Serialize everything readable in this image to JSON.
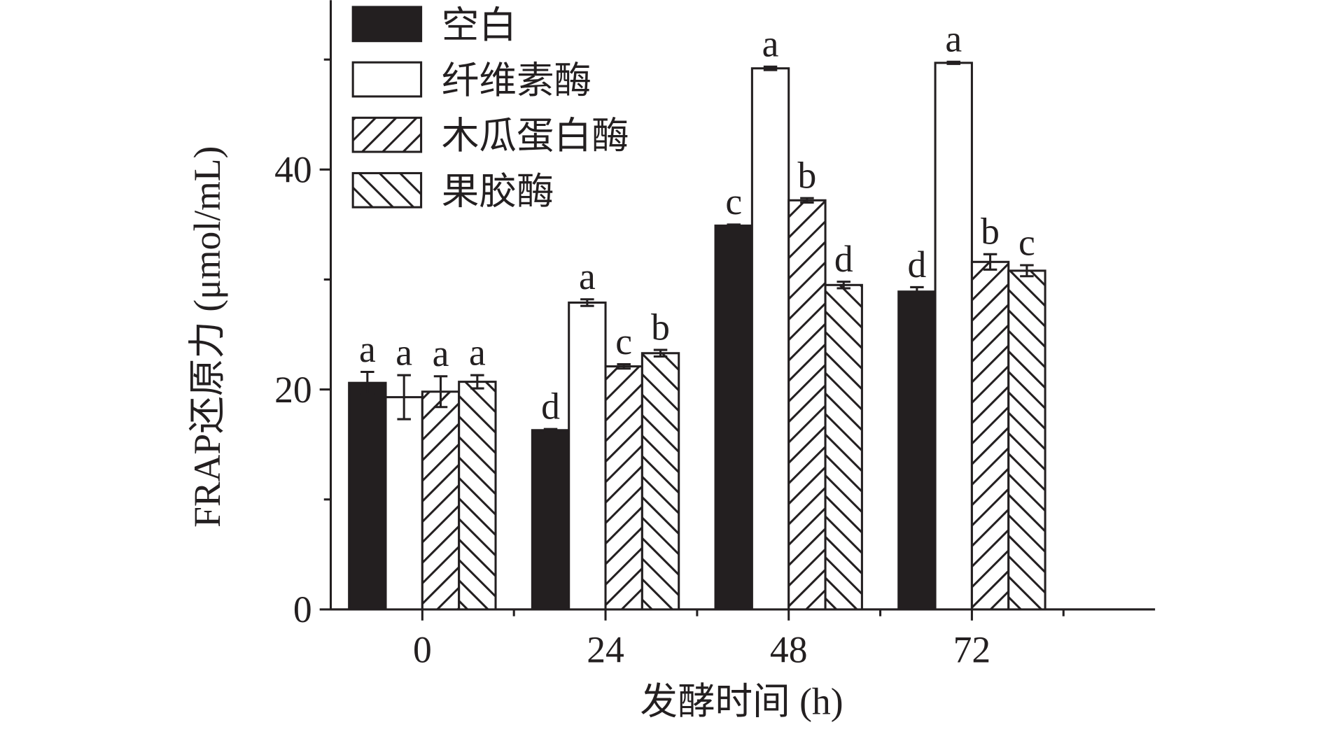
{
  "chart_data": {
    "type": "bar",
    "x_label": "发酵时间 (h)",
    "y_label": "FRAP还原力 (μmol/mL)",
    "categories": [
      "0",
      "24",
      "48",
      "72"
    ],
    "x": [
      0,
      24,
      48,
      72
    ],
    "xlim": [
      -12,
      96
    ],
    "xticks": [
      0,
      24,
      48,
      72
    ],
    "xminorticks": [
      12,
      36,
      60,
      84
    ],
    "ylim": [
      0,
      55.4
    ],
    "yticks": [
      0,
      20,
      40
    ],
    "yminorticks": [
      10,
      30,
      50
    ],
    "bar_width": 4.8,
    "series": [
      {
        "name": "空白",
        "color": "#231f20",
        "hatch": "none",
        "values": [
          20.6,
          16.3,
          34.9,
          28.9
        ],
        "errors": [
          1.0,
          0.1,
          0.1,
          0.4
        ],
        "letters": [
          "a",
          "d",
          "c",
          "d"
        ]
      },
      {
        "name": "纤维素酶",
        "color": "#ffffff",
        "hatch": "none",
        "values": [
          19.3,
          27.9,
          49.2,
          49.7
        ],
        "errors": [
          2.0,
          0.3,
          0.15,
          0.1
        ],
        "letters": [
          "a",
          "a",
          "a",
          "a"
        ]
      },
      {
        "name": "木瓜蛋白酶",
        "color": "#ffffff",
        "hatch": "forward",
        "values": [
          19.8,
          22.1,
          37.2,
          31.6
        ],
        "errors": [
          1.4,
          0.2,
          0.2,
          0.7
        ],
        "letters": [
          "a",
          "c",
          "b",
          "b"
        ]
      },
      {
        "name": "果胶酶",
        "color": "#ffffff",
        "hatch": "backward",
        "values": [
          20.7,
          23.3,
          29.5,
          30.8
        ],
        "errors": [
          0.6,
          0.3,
          0.3,
          0.5
        ],
        "letters": [
          "a",
          "b",
          "d",
          "c"
        ]
      }
    ]
  }
}
